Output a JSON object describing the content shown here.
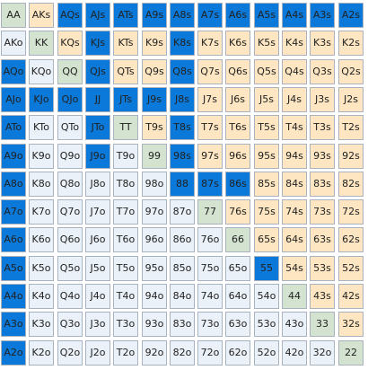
{
  "colors": {
    "pair": "#d3e3cf",
    "suited": "#fde6c1",
    "offsuit": "#ebf1f8",
    "selected": "#0a79d9",
    "border": "#a9b3bf"
  },
  "ranks": [
    "A",
    "K",
    "Q",
    "J",
    "T",
    "9",
    "8",
    "7",
    "6",
    "5",
    "4",
    "3",
    "2"
  ],
  "selected_hands": [
    "AQs",
    "AJs",
    "ATs",
    "A9s",
    "A8s",
    "A7s",
    "A6s",
    "A5s",
    "A4s",
    "A3s",
    "A2s",
    "KJs",
    "K8s",
    "QJs",
    "Q8s",
    "AQo",
    "AJo",
    "KJo",
    "QJo",
    "JJ",
    "JTs",
    "J9s",
    "J8s",
    "ATo",
    "JTo",
    "T8s",
    "A9o",
    "J9o",
    "98s",
    "A8o",
    "88",
    "87s",
    "86s",
    "A7o",
    "A6o",
    "A5o",
    "55",
    "A4o",
    "A3o",
    "A2o"
  ],
  "hands": [
    [
      "AA",
      "AKs",
      "AQs",
      "AJs",
      "ATs",
      "A9s",
      "A8s",
      "A7s",
      "A6s",
      "A5s",
      "A4s",
      "A3s",
      "A2s"
    ],
    [
      "AKo",
      "KK",
      "KQs",
      "KJs",
      "KTs",
      "K9s",
      "K8s",
      "K7s",
      "K6s",
      "K5s",
      "K4s",
      "K3s",
      "K2s"
    ],
    [
      "AQo",
      "KQo",
      "QQ",
      "QJs",
      "QTs",
      "Q9s",
      "Q8s",
      "Q7s",
      "Q6s",
      "Q5s",
      "Q4s",
      "Q3s",
      "Q2s"
    ],
    [
      "AJo",
      "KJo",
      "QJo",
      "JJ",
      "JTs",
      "J9s",
      "J8s",
      "J7s",
      "J6s",
      "J5s",
      "J4s",
      "J3s",
      "J2s"
    ],
    [
      "ATo",
      "KTo",
      "QTo",
      "JTo",
      "TT",
      "T9s",
      "T8s",
      "T7s",
      "T6s",
      "T5s",
      "T4s",
      "T3s",
      "T2s"
    ],
    [
      "A9o",
      "K9o",
      "Q9o",
      "J9o",
      "T9o",
      "99",
      "98s",
      "97s",
      "96s",
      "95s",
      "94s",
      "93s",
      "92s"
    ],
    [
      "A8o",
      "K8o",
      "Q8o",
      "J8o",
      "T8o",
      "98o",
      "88",
      "87s",
      "86s",
      "85s",
      "84s",
      "83s",
      "82s"
    ],
    [
      "A7o",
      "K7o",
      "Q7o",
      "J7o",
      "T7o",
      "97o",
      "87o",
      "77",
      "76s",
      "75s",
      "74s",
      "73s",
      "72s"
    ],
    [
      "A6o",
      "K6o",
      "Q6o",
      "J6o",
      "T6o",
      "96o",
      "86o",
      "76o",
      "66",
      "65s",
      "64s",
      "63s",
      "62s"
    ],
    [
      "A5o",
      "K5o",
      "Q5o",
      "J5o",
      "T5o",
      "95o",
      "85o",
      "75o",
      "65o",
      "55",
      "54s",
      "53s",
      "52s"
    ],
    [
      "A4o",
      "K4o",
      "Q4o",
      "J4o",
      "T4o",
      "94o",
      "84o",
      "74o",
      "64o",
      "54o",
      "44",
      "43s",
      "42s"
    ],
    [
      "A3o",
      "K3o",
      "Q3o",
      "J3o",
      "T3o",
      "93o",
      "83o",
      "73o",
      "63o",
      "53o",
      "43o",
      "33",
      "32s"
    ],
    [
      "A2o",
      "K2o",
      "Q2o",
      "J2o",
      "T2o",
      "92o",
      "82o",
      "72o",
      "62o",
      "52o",
      "42o",
      "32o",
      "22"
    ]
  ]
}
